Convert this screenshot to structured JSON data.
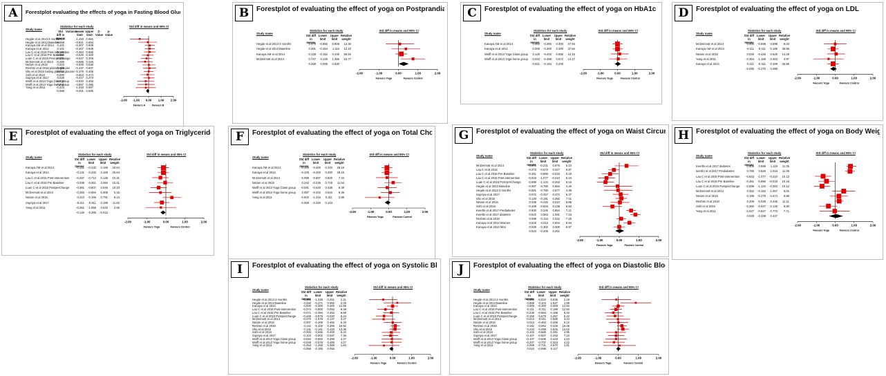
{
  "column_headers": {
    "study_name": "Study name",
    "statistics": "Statistics for each study",
    "std_diff_ci": "Std diff in means and 95% CI",
    "std_diff": "Std diff in means",
    "lower": "Lower limit",
    "upper": "Upper limit",
    "weight": "Relative weight",
    "variance": "Variance",
    "z_value": "Z-Value",
    "p_value": "p-Value"
  },
  "axis_ticks": [
    "-2.00",
    "-1.00",
    "0.00",
    "1.00",
    "2.00"
  ],
  "favours": {
    "left": "Favours Yoga",
    "right": "Favours Control",
    "left_a": "Favours A",
    "right_a": "Favours B"
  },
  "chart_data": [
    {
      "letter": "A",
      "type": "table",
      "title": "Forestplot evaluating the effects of yoga in Fasting Blood Glucose",
      "xlim": [
        -2,
        2
      ],
      "studies": [
        {
          "name": "Hegde et al 2013 3 months",
          "d": -0.716,
          "lo": -1.493,
          "hi": 0.062
        },
        {
          "name": "Hegde et al 2013 Baseline",
          "d": -0.068,
          "lo": -0.821,
          "hi": 0.684
        },
        {
          "name": "Kanaya AM et al 2014",
          "d": 0.101,
          "lo": -0.307,
          "hi": 0.509
        },
        {
          "name": "Kanaya et al 2014",
          "d": 0.101,
          "lo": -0.307,
          "hi": 0.509
        },
        {
          "name": "Lau C et al 2015 Post-intervention",
          "d": 0.102,
          "lo": -0.364,
          "hi": 0.568
        },
        {
          "name": "Lau C et al 2015 Pre Baseline",
          "d": -0.065,
          "lo": -0.53,
          "hi": 0.4
        },
        {
          "name": "Luan C et al 2015 Post-preChange",
          "d": -0.161,
          "lo": -0.627,
          "hi": 0.305
        },
        {
          "name": "McDermott et al 2014",
          "d": -0.28,
          "lo": -0.886,
          "hi": 0.326
        },
        {
          "name": "Netam et al 2015",
          "d": 0.023,
          "lo": -0.5,
          "hi": 0.546
        },
        {
          "name": "Reshmi et al 2018 plasma glucose",
          "d": 0.085,
          "lo": -0.437,
          "hi": 0.607
        },
        {
          "name": "Shu et al 2015 fasting plasma glucose",
          "d": 0.013,
          "lo": -0.379,
          "hi": 0.405
        },
        {
          "name": "Sohl et al 2016",
          "d": -0.09,
          "lo": -0.654,
          "hi": 0.474
        },
        {
          "name": "Supriya et al 2017",
          "d": 0.028,
          "lo": -0.417,
          "hi": 0.473
        },
        {
          "name": "Wolff et al 2013 Yoga Class group",
          "d": -0.234,
          "lo": -0.92,
          "hi": 0.452
        },
        {
          "name": "Wolff et al 2013 Yoga home group",
          "d": -0.201,
          "lo": -0.887,
          "hi": 0.485
        },
        {
          "name": "Yang et al 2011",
          "d": -0.223,
          "lo": -1.033,
          "hi": 0.587
        }
      ],
      "summary": {
        "d": -0.068,
        "lo": -0.201,
        "hi": 0.065
      }
    },
    {
      "letter": "B",
      "type": "table",
      "title": "Forestplot of evaluating the effect of yoga on Postprandial Blood Glucose",
      "xlim": [
        -2,
        2
      ],
      "studies": [
        {
          "name": "Hegde et al 2013 3 months",
          "d": 0.079,
          "lo": -0.65,
          "hi": 0.808,
          "w": "12.30"
        },
        {
          "name": "Hegde et al 2013 Baseline",
          "d": 0.381,
          "lo": -0.354,
          "hi": 1.116,
          "w": "12.10"
        },
        {
          "name": "Kanaya AM et al 2014",
          "d": 0.148,
          "lo": -0.152,
          "hi": 0.448,
          "w": "58.84"
        },
        {
          "name": "McDermott et al 2014",
          "d": 0.747,
          "lo": 0.128,
          "hi": 1.365,
          "w": "16.77"
        }
      ],
      "summary": {
        "d": 0.268,
        "lo": 0.006,
        "hi": 0.53
      }
    },
    {
      "letter": "C",
      "type": "table",
      "title": "Forestplot of evaluating the effect of yoga on HbA1c",
      "xlim": [
        -2,
        2
      ],
      "studies": [
        {
          "name": "Kanaya AM et al 2014",
          "d": 0.0,
          "lo": -0.3,
          "hi": 0.3,
          "w": "37.84"
        },
        {
          "name": "Kanaya et al 2014",
          "d": 0.0,
          "lo": -0.3,
          "hi": 0.3,
          "w": "37.84"
        },
        {
          "name": "Wolff et al 2013 Yoga Class group",
          "d": 0.126,
          "lo": -0.403,
          "hi": 0.655,
          "w": "12.15"
        },
        {
          "name": "Wolff et al 2013 Yoga home group",
          "d": 0.043,
          "lo": -0.486,
          "hi": 0.572,
          "w": "12.17"
        }
      ],
      "summary": {
        "d": 0.021,
        "lo": -0.164,
        "hi": 0.205
      }
    },
    {
      "letter": "D",
      "type": "table",
      "title": "Forestplot of evaluating the effect of yoga on LDL",
      "xlim": [
        -2,
        2
      ],
      "studies": [
        {
          "name": "McDermott et al 2014",
          "d": 0.0,
          "lo": -0.598,
          "hi": 0.598,
          "w": "9.03"
        },
        {
          "name": "Kanaya AM et al 2014",
          "d": -0.111,
          "lo": -0.411,
          "hi": 0.189,
          "w": "35.86"
        },
        {
          "name": "Netam et al 2015",
          "d": 0.049,
          "lo": -0.426,
          "hi": 0.525,
          "w": "14.29"
        },
        {
          "name": "Yang et al 2011",
          "d": -0.353,
          "lo": -1.159,
          "hi": 0.453,
          "w": "4.97"
        },
        {
          "name": "Kanaya et al 2014",
          "d": -0.111,
          "lo": -0.411,
          "hi": 0.189,
          "w": "35.86"
        }
      ],
      "summary": {
        "d": -0.09,
        "lo": -0.27,
        "hi": 0.09
      }
    },
    {
      "letter": "E",
      "type": "table",
      "title": "Forestplot of evaluating the effect of yoga on Triglycerides",
      "xlim": [
        -2,
        2
      ],
      "studies": [
        {
          "name": "Kanaya AM et al 2014",
          "d": -0.131,
          "lo": -0.432,
          "hi": 0.169,
          "w": "20.64"
        },
        {
          "name": "Kanaya et al 2014",
          "d": -0.131,
          "lo": -0.432,
          "hi": 0.169,
          "w": "20.64"
        },
        {
          "name": "Lau C et al 2015 Post-intervention",
          "d": -0.287,
          "lo": -0.712,
          "hi": 0.138,
          "w": "10.31"
        },
        {
          "name": "Lau C et al 2015 Pre Baseline",
          "d": -0.038,
          "lo": -0.461,
          "hi": 0.384,
          "w": "10.41"
        },
        {
          "name": "Luan C et al 2015 PostpreChange",
          "d": -0.381,
          "lo": -0.807,
          "hi": 0.046,
          "w": "10.23"
        },
        {
          "name": "McDermott et al 2014",
          "d": -0.283,
          "lo": -0.894,
          "hi": 0.308,
          "w": "5.16"
        },
        {
          "name": "Netam et al 2015",
          "d": 0.313,
          "lo": -0.166,
          "hi": 0.791,
          "w": "8.13"
        },
        {
          "name": "Supriya et al 2017",
          "d": -0.211,
          "lo": -0.611,
          "hi": 0.189,
          "w": "11.62"
        },
        {
          "name": "Yang et al 2011",
          "d": -0.261,
          "lo": -1.065,
          "hi": 0.542,
          "w": "2.86"
        }
      ],
      "summary": {
        "d": -0.148,
        "lo": -0.285,
        "hi": -0.012
      }
    },
    {
      "letter": "F",
      "type": "table",
      "title": "Forestplot of evaluating the effect of yoga on Total Cholesterol",
      "xlim": [
        -2,
        2
      ],
      "studies": [
        {
          "name": "Kanaya AM et al 2014",
          "d": -0.1,
          "lo": -0.4,
          "hi": 0.2,
          "w": "29.18"
        },
        {
          "name": "Kanaya et al 2014",
          "d": -0.1,
          "lo": -0.4,
          "hi": 0.2,
          "w": "29.18"
        },
        {
          "name": "McDermott et al 2014",
          "d": -0.099,
          "lo": -0.697,
          "hi": 0.5,
          "w": "7.34"
        },
        {
          "name": "Netam et al 2015",
          "d": 0.242,
          "lo": -0.235,
          "hi": 0.719,
          "w": "11.54"
        },
        {
          "name": "Wolff et al 2013 Yoga Class group",
          "d": -0.091,
          "lo": -0.62,
          "hi": 0.438,
          "w": "9.39"
        },
        {
          "name": "Wolff et al 2013 Yoga home group",
          "d": 0.087,
          "lo": -0.442,
          "hi": 0.616,
          "w": "9.39"
        },
        {
          "name": "Yang et al 2011",
          "d": -0.502,
          "lo": -1.316,
          "hi": 0.311,
          "w": "3.98"
        }
      ],
      "summary": {
        "d": -0.058,
        "lo": -0.22,
        "hi": 0.104
      }
    },
    {
      "letter": "G",
      "type": "table",
      "title": "Forestplot of evaluating the effect of yoga on Waist Circumferences",
      "xlim": [
        -2,
        2
      ],
      "studies": [
        {
          "name": "McDermott et al 2014",
          "d": 0.372,
          "lo": -0.231,
          "hi": 0.976,
          "w": "5.10"
        },
        {
          "name": "Lau C et al 2016",
          "d": -0.273,
          "lo": -0.572,
          "hi": 0.027,
          "w": "6.97"
        },
        {
          "name": "Lau C et al 2015 Pre Baseline",
          "d": -0.461,
          "lo": -0.89,
          "hi": -0.033,
          "w": "6.18"
        },
        {
          "name": "Lau C et al 2015 Post-intervention",
          "d": -0.643,
          "lo": -1.077,
          "hi": -0.21,
          "w": "6.16"
        },
        {
          "name": "Luan C et al 2015 Post-preChange",
          "d": -0.699,
          "lo": -1.134,
          "hi": -0.263,
          "w": "6.15"
        },
        {
          "name": "Hegde et al 2013 Baseline",
          "d": -0.087,
          "lo": -0.78,
          "hi": 0.662,
          "w": "4.26"
        },
        {
          "name": "Hegde et al 2013 3 months",
          "d": -0.061,
          "lo": -0.78,
          "hi": 0.677,
          "w": "4.38"
        },
        {
          "name": "Supriya et al 2017",
          "d": 0.072,
          "lo": -0.327,
          "hi": 0.472,
          "w": "6.37"
        },
        {
          "name": "Shu et al 2015",
          "d": 0.12,
          "lo": -0.191,
          "hi": 0.392,
          "w": "7.01"
        },
        {
          "name": "Netam et al 2015",
          "d": 0.035,
          "lo": -0.44,
          "hi": 0.51,
          "w": "5.88"
        },
        {
          "name": "Sohl et al 2016",
          "d": -0.348,
          "lo": -0.834,
          "hi": 0.138,
          "w": "5.83"
        },
        {
          "name": "Keerthi et al 2017 Prediabetes",
          "d": 0.6,
          "lo": 0.346,
          "hi": 0.854,
          "w": "7.21"
        },
        {
          "name": "Keerthi et al 2017 diabetes",
          "d": 0.822,
          "lo": 0.563,
          "hi": 1.081,
          "w": "7.18"
        },
        {
          "name": "Reshmi et al 2018",
          "d": 0.099,
          "lo": -0.144,
          "hi": 0.342,
          "w": "7.26"
        },
        {
          "name": "Kanaya et al 2014 Women",
          "d": 0.518,
          "lo": 0.213,
          "hi": 0.822,
          "w": "6.94"
        },
        {
          "name": "Kanaya et al 2014 Men",
          "d": 0.0,
          "lo": -0.3,
          "hi": 0.3,
          "w": "6.97"
        }
      ],
      "summary": {
        "d": 0.023,
        "lo": -0.206,
        "hi": 0.251
      }
    },
    {
      "letter": "H",
      "type": "table",
      "title": "Forestplot of evaluating the effect of yoga on Body Weight",
      "xlim": [
        -2,
        2
      ],
      "studies": [
        {
          "name": "Keerthi et al 2017 diabetes",
          "d": 0.809,
          "lo": 0.599,
          "hi": 1.119,
          "w": "11.05"
        },
        {
          "name": "keerthi et al 2017 Prediabetes",
          "d": 0.785,
          "lo": 0.526,
          "hi": 1.043,
          "w": "11.05"
        },
        {
          "name": "Lau C et al 2015 Post-intervention",
          "d": -0.643,
          "lo": -1.077,
          "hi": -0.21,
          "w": "10.13"
        },
        {
          "name": "Lau C et al 2015 Pre Baseline",
          "d": -0.461,
          "lo": -0.89,
          "hi": -0.033,
          "w": "10.16"
        },
        {
          "name": "Luan C et al 2015 PostpreChange",
          "d": -0.699,
          "lo": -1.134,
          "hi": -0.263,
          "w": "10.12"
        },
        {
          "name": "McDermott et al 2014",
          "d": 0.452,
          "lo": -0.164,
          "hi": 1.067,
          "w": "9.01"
        },
        {
          "name": "Netam et al 2015",
          "d": 0.196,
          "lo": -0.279,
          "hi": 0.674,
          "w": "9.86"
        },
        {
          "name": "Reshmi et al 2018",
          "d": 0.209,
          "lo": -0.039,
          "hi": 0.446,
          "w": "11.11"
        },
        {
          "name": "Sohl et al 2016",
          "d": -0.36,
          "lo": -0.847,
          "hi": 0.126,
          "w": "9.80"
        },
        {
          "name": "Yang et al 2011",
          "d": -0.027,
          "lo": -0.827,
          "hi": 0.773,
          "w": "7.71"
        }
      ],
      "summary": {
        "d": 0.045,
        "lo": -0.338,
        "hi": 0.427
      }
    },
    {
      "letter": "I",
      "type": "table",
      "title": "Forestplot of evaluating the effect of yoga on Systolic Blood Pressure",
      "xlim": [
        -2,
        2
      ],
      "studies": [
        {
          "name": "Hegde et al 2013 3 months",
          "d": -0.488,
          "lo": -1.228,
          "hi": 0.251,
          "w": "2.21"
        },
        {
          "name": "Hegde et al 2013 Baseline",
          "d": 0.25,
          "lo": -0.471,
          "hi": 0.982,
          "w": "2.25"
        },
        {
          "name": "Kanaya et al 2014",
          "d": 0.0,
          "lo": -0.3,
          "hi": 0.3,
          "w": "12.66"
        },
        {
          "name": "Lau C et al 2015 Post-intervention",
          "d": -0.374,
          "lo": -0.8,
          "hi": 0.052,
          "w": "6.49"
        },
        {
          "name": "Lau C et al 2015 Pre Baseline",
          "d": -0.071,
          "lo": -0.494,
          "hi": 0.352,
          "w": "6.59"
        },
        {
          "name": "Luan C et al 2015 PostpreChange",
          "d": -0.448,
          "lo": -0.876,
          "hi": -0.02,
          "w": "6.44"
        },
        {
          "name": "McDermott et al 2014",
          "d": -0.47,
          "lo": -1.076,
          "hi": 0.137,
          "w": "3.27"
        },
        {
          "name": "Netam et al 2015",
          "d": 0.007,
          "lo": -0.469,
          "hi": 0.482,
          "w": "5.25"
        },
        {
          "name": "Reshmi et al 2018",
          "d": 0.141,
          "lo": -0.102,
          "hi": 0.385,
          "w": "18.92"
        },
        {
          "name": "Shu et al 2015",
          "d": 0.131,
          "lo": -0.161,
          "hi": 0.423,
          "w": "13.35"
        },
        {
          "name": "Sohl et al 2016",
          "d": -0.083,
          "lo": -0.566,
          "hi": 0.4,
          "w": "5.10"
        },
        {
          "name": "Supriya et al 2017",
          "d": -0.103,
          "lo": -0.502,
          "hi": 0.297,
          "w": "7.36"
        },
        {
          "name": "Wolff et al 2013 Yoga Class group",
          "d": -0.034,
          "lo": -0.563,
          "hi": 0.495,
          "w": "4.27"
        },
        {
          "name": "Wolff et al 2013 Yoga home group",
          "d": -0.049,
          "lo": -0.578,
          "hi": 0.48,
          "w": "4.27"
        },
        {
          "name": "Yang et al 2011",
          "d": -0.453,
          "lo": -1.263,
          "hi": 0.358,
          "w": "1.84"
        }
      ],
      "summary": {
        "d": -0.056,
        "lo": -0.165,
        "hi": 0.053
      }
    },
    {
      "letter": "J",
      "type": "table",
      "title": "Forestplot of evaluating the effect of yoga on Diastolic Blood Pressure",
      "xlim": [
        -2,
        2
      ],
      "studies": [
        {
          "name": "Hegde et al 2013 3 months",
          "d": -0.093,
          "lo": -0.822,
          "hi": 0.636,
          "w": "2.18"
        },
        {
          "name": "Hegde et al 2013 Baseline",
          "d": 0.868,
          "lo": 0.104,
          "hi": 1.627,
          "w": "1.99"
        },
        {
          "name": "Kanaya et al 2014",
          "d": 0.0,
          "lo": -0.3,
          "hi": 0.3,
          "w": "12.84"
        },
        {
          "name": "Lau C et al 2015 Post-intervention",
          "d": -0.111,
          "lo": -0.411,
          "hi": 0.189,
          "w": "12.84"
        },
        {
          "name": "Lau C et al 2015 Pre Baseline",
          "d": -0.239,
          "lo": -0.663,
          "hi": 0.186,
          "w": "6.43"
        },
        {
          "name": "Luan C et al 2015 PostpreChange",
          "d": -0.156,
          "lo": -0.579,
          "hi": 0.267,
          "w": "6.43"
        },
        {
          "name": "McDermott et al 2014",
          "d": -0.013,
          "lo": -0.611,
          "hi": 0.585,
          "w": "3.24"
        },
        {
          "name": "Netam et al 2015",
          "d": 0.013,
          "lo": -0.462,
          "hi": 0.488,
          "w": "5.12"
        },
        {
          "name": "Reshmi et al 2018",
          "d": 0.182,
          "lo": -0.062,
          "hi": 0.425,
          "w": "19.48"
        },
        {
          "name": "Shu et al 2015",
          "d": 0.234,
          "lo": -0.059,
          "hi": 0.526,
          "w": "13.53"
        },
        {
          "name": "Sohl et al 2016",
          "d": -0.102,
          "lo": -0.585,
          "hi": 0.381,
          "w": "4.95"
        },
        {
          "name": "Supriya et al 2017",
          "d": -0.107,
          "lo": -0.507,
          "hi": 0.293,
          "w": "7.24"
        },
        {
          "name": "Wolff et al 2013 Yoga Class group",
          "d": -0.107,
          "lo": -0.636,
          "hi": 0.422,
          "w": "4.13"
        },
        {
          "name": "Wolff et al 2013 Yoga home group",
          "d": -0.207,
          "lo": -0.737,
          "hi": 0.323,
          "w": "4.12"
        },
        {
          "name": "Yang et al 2011",
          "d": 0.069,
          "lo": -0.731,
          "hi": 0.87,
          "w": "1.81"
        }
      ],
      "summary": {
        "d": 0.01,
        "lo": -0.099,
        "hi": 0.117
      }
    }
  ]
}
